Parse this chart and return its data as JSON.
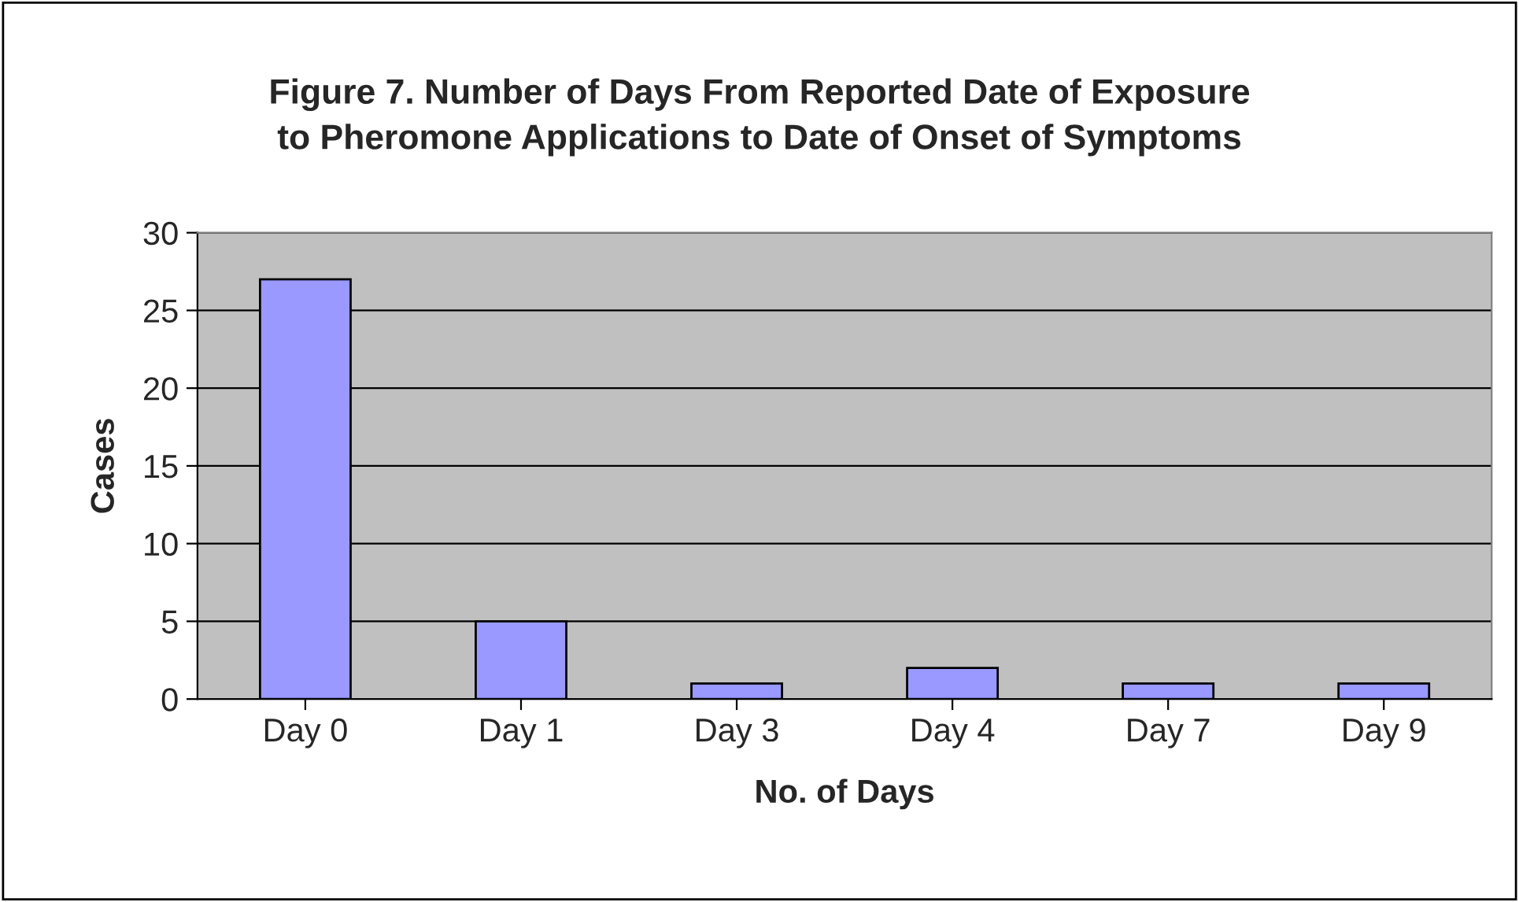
{
  "chart_data": {
    "type": "bar",
    "title": "Figure 7. Number of Days From Reported Date of Exposure\nto Pheromone Applications to Date of Onset of Symptoms",
    "xlabel": "No. of Days",
    "ylabel": "Cases",
    "categories": [
      "Day 0",
      "Day 1",
      "Day 3",
      "Day 4",
      "Day 7",
      "Day 9"
    ],
    "values": [
      27,
      5,
      1,
      2,
      1,
      1
    ],
    "color": "#9999ff",
    "ylim": [
      0,
      30
    ],
    "yticks": [
      0,
      5,
      10,
      15,
      20,
      25,
      30
    ],
    "grid": "y"
  }
}
